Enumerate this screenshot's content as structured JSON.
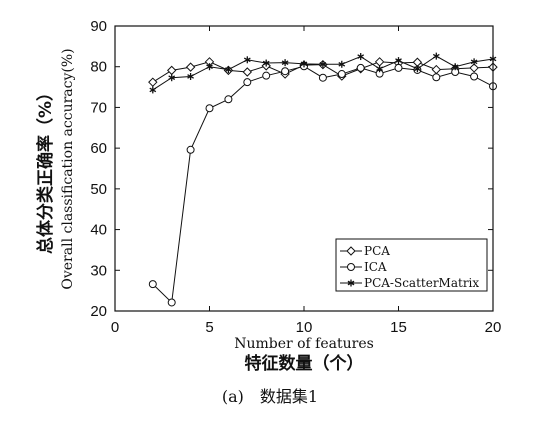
{
  "chart_data": {
    "type": "line",
    "xlabel": "Number of features",
    "xlabel_cn": "特征数量（个）",
    "ylabel": "Overall classification accuracy(%)",
    "ylabel_cn": "总体分类正确率（%）",
    "caption": "(a)　数据集1",
    "xlim": [
      0,
      20
    ],
    "ylim": [
      20,
      90
    ],
    "xticks": [
      0,
      5,
      10,
      15,
      20
    ],
    "yticks": [
      20,
      30,
      40,
      50,
      60,
      70,
      80,
      90
    ],
    "legend_position": "bottom-right",
    "x": [
      2,
      3,
      4,
      5,
      6,
      7,
      8,
      9,
      10,
      11,
      12,
      13,
      14,
      15,
      16,
      17,
      18,
      19,
      20
    ],
    "series": [
      {
        "name": "PCA",
        "marker": "diamond",
        "values": [
          76.2,
          79.1,
          79.9,
          81.2,
          79.1,
          78.7,
          80.2,
          78.2,
          80.4,
          80.5,
          77.7,
          79.5,
          81.2,
          80.9,
          81.1,
          79.3,
          79.5,
          79.7,
          79.9
        ]
      },
      {
        "name": "ICA",
        "marker": "circle",
        "values": [
          26.6,
          22.1,
          59.6,
          69.8,
          72.0,
          76.2,
          77.8,
          78.9,
          80.1,
          77.3,
          78.2,
          79.7,
          78.3,
          79.7,
          79.2,
          77.4,
          78.7,
          77.6,
          75.2
        ]
      },
      {
        "name": "PCA-ScatterMatrix",
        "marker": "star",
        "values": [
          74.3,
          77.3,
          77.6,
          80.0,
          79.3,
          81.7,
          80.9,
          81.0,
          80.7,
          80.6,
          80.6,
          82.5,
          79.5,
          81.5,
          79.5,
          82.6,
          80.0,
          81.2,
          81.9
        ]
      }
    ]
  }
}
